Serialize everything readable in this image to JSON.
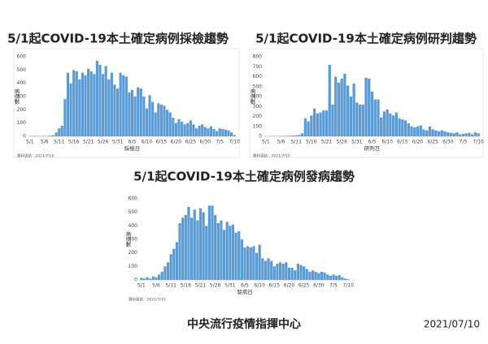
{
  "chart_data": [
    {
      "type": "bar",
      "title": "5/1起COVID-19本土確定病例採檢趨勢",
      "x_label": "採檢日",
      "y_label": "病例數",
      "note": "資料更新：2021/7/10",
      "color": "#5b9bd5",
      "grid": false,
      "categories": [
        "5/1",
        null,
        null,
        null,
        null,
        "5/6",
        null,
        null,
        null,
        null,
        "5/11",
        null,
        null,
        null,
        null,
        "5/16",
        null,
        null,
        null,
        null,
        "5/21",
        null,
        null,
        null,
        null,
        "5/26",
        null,
        null,
        null,
        null,
        "5/31",
        null,
        null,
        null,
        null,
        "6/5",
        null,
        null,
        null,
        null,
        "6/10",
        null,
        null,
        null,
        null,
        "6/15",
        null,
        null,
        null,
        null,
        "6/20",
        null,
        null,
        null,
        null,
        "6/25",
        null,
        null,
        null,
        null,
        "6/30",
        null,
        null,
        null,
        null,
        "7/5",
        null,
        null,
        null,
        null,
        "7/10"
      ],
      "values": [
        2,
        1,
        3,
        2,
        1,
        3,
        2,
        5,
        8,
        30,
        60,
        80,
        280,
        480,
        400,
        500,
        490,
        430,
        480,
        460,
        510,
        490,
        470,
        570,
        540,
        470,
        530,
        430,
        480,
        390,
        360,
        480,
        460,
        450,
        330,
        350,
        300,
        370,
        360,
        300,
        210,
        310,
        260,
        180,
        250,
        240,
        230,
        200,
        180,
        140,
        100,
        130,
        110,
        90,
        100,
        120,
        90,
        60,
        80,
        90,
        70,
        60,
        75,
        55,
        40,
        60,
        55,
        50,
        45,
        30,
        10
      ],
      "ylim": [
        0,
        600
      ],
      "yticks": [
        0,
        100,
        200,
        300,
        400,
        500,
        600
      ]
    },
    {
      "type": "bar",
      "title": "5/1起COVID-19本土確定病例研判趨勢",
      "x_label": "研判日",
      "y_label": "病例數",
      "note": "資料更新：2021/7/10",
      "color": "#5b9bd5",
      "grid": false,
      "categories": [
        "5/1",
        null,
        null,
        null,
        null,
        "5/6",
        null,
        null,
        null,
        null,
        "5/11",
        null,
        null,
        null,
        null,
        "5/16",
        null,
        null,
        null,
        null,
        "5/21",
        null,
        null,
        null,
        null,
        "5/26",
        null,
        null,
        null,
        null,
        "5/31",
        null,
        null,
        null,
        null,
        "6/5",
        null,
        null,
        null,
        null,
        "6/10",
        null,
        null,
        null,
        null,
        "6/15",
        null,
        null,
        null,
        null,
        "6/20",
        null,
        null,
        null,
        null,
        "6/25",
        null,
        null,
        null,
        null,
        "6/30",
        null,
        null,
        null,
        null,
        "7/5",
        null,
        null,
        null,
        null,
        "7/10"
      ],
      "values": [
        1,
        2,
        1,
        3,
        2,
        4,
        3,
        5,
        6,
        8,
        10,
        15,
        30,
        180,
        150,
        210,
        280,
        230,
        240,
        260,
        260,
        720,
        320,
        600,
        540,
        580,
        630,
        510,
        400,
        530,
        340,
        320,
        320,
        590,
        580,
        450,
        370,
        370,
        190,
        250,
        270,
        230,
        210,
        240,
        180,
        170,
        160,
        130,
        100,
        90,
        100,
        110,
        70,
        60,
        100,
        70,
        60,
        50,
        60,
        50,
        40,
        35,
        30,
        40,
        20,
        25,
        30,
        35,
        20,
        40,
        30
      ],
      "ylim": [
        0,
        800
      ],
      "yticks": [
        0,
        100,
        200,
        300,
        400,
        500,
        600,
        700,
        800
      ]
    },
    {
      "type": "bar",
      "title": "5/1起COVID-19本土確定病例發病趨勢",
      "x_label": "發病日",
      "y_label": "病例數",
      "note": "資料更新：2021/7/10",
      "color": "#5b9bd5",
      "grid": false,
      "categories": [
        "5/1",
        null,
        null,
        null,
        null,
        "5/6",
        null,
        null,
        null,
        null,
        "5/11",
        null,
        null,
        null,
        null,
        "5/16",
        null,
        null,
        null,
        null,
        "5/21",
        null,
        null,
        null,
        null,
        "5/26",
        null,
        null,
        null,
        null,
        "5/31",
        null,
        null,
        null,
        null,
        "6/5",
        null,
        null,
        null,
        null,
        "6/10",
        null,
        null,
        null,
        null,
        "6/15",
        null,
        null,
        null,
        null,
        "6/20",
        null,
        null,
        null,
        null,
        "6/25",
        null,
        null,
        null,
        null,
        "6/30",
        null,
        null,
        null,
        null,
        "7/5",
        null,
        null,
        null,
        null,
        "7/10"
      ],
      "values": [
        15,
        10,
        20,
        10,
        25,
        20,
        40,
        60,
        100,
        130,
        190,
        230,
        280,
        420,
        460,
        480,
        540,
        460,
        520,
        440,
        530,
        500,
        400,
        550,
        550,
        480,
        420,
        440,
        370,
        430,
        400,
        410,
        350,
        360,
        300,
        240,
        250,
        240,
        250,
        200,
        260,
        160,
        140,
        160,
        140,
        100,
        120,
        130,
        120,
        130,
        90,
        90,
        70,
        120,
        110,
        100,
        80,
        60,
        70,
        60,
        50,
        60,
        55,
        40,
        30,
        40,
        30,
        35,
        20,
        10,
        5
      ],
      "ylim": [
        0,
        600
      ],
      "yticks": [
        0,
        100,
        200,
        300,
        400,
        500,
        600
      ]
    }
  ],
  "footer": {
    "org": "中央流行疫情指揮中心",
    "date": "2021/07/10"
  }
}
